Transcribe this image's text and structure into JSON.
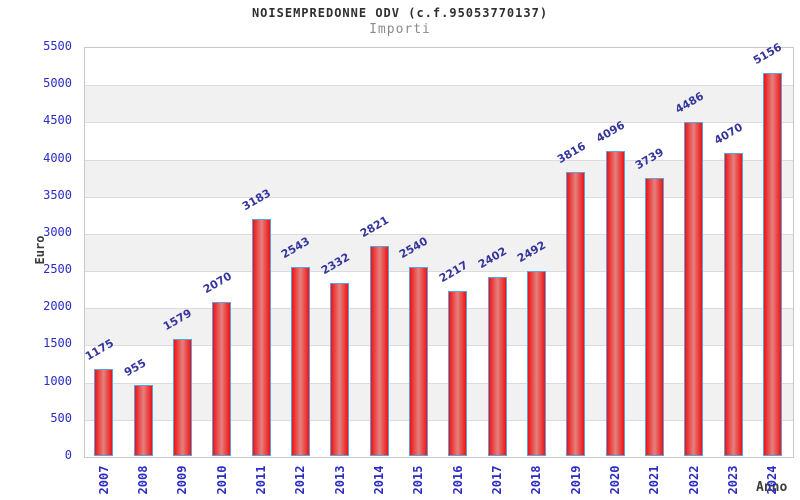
{
  "chart_data": {
    "type": "bar",
    "title": "NOISEMPREDONNE ODV (c.f.95053770137)",
    "subtitle": "Importi",
    "xlabel": "Anno",
    "ylabel": "Euro",
    "categories": [
      "2007",
      "2008",
      "2009",
      "2010",
      "2011",
      "2012",
      "2013",
      "2014",
      "2015",
      "2016",
      "2017",
      "2018",
      "2019",
      "2020",
      "2021",
      "2022",
      "2023",
      "2024"
    ],
    "values": [
      1175,
      955,
      1579,
      2070,
      3183,
      2543,
      2332,
      2821,
      2540,
      2217,
      2402,
      2492,
      3816,
      4096,
      3739,
      4486,
      4070,
      5156
    ],
    "yticks": [
      "0",
      "500",
      "1000",
      "1500",
      "2000",
      "2500",
      "3000",
      "3500",
      "4000",
      "4500",
      "5000",
      "5500"
    ],
    "ylim": [
      0,
      5500
    ],
    "ytick_step": 500,
    "grid": "horizontal gridlines with alternating gray/white bands every 500",
    "legend": null,
    "bar_value_labels_rotation_deg": -30,
    "x_tick_rotation_deg": -90
  },
  "colors": {
    "title": "#2f2f2f",
    "subtitle": "#8c8c8c",
    "tick_label": "#2c2cc4",
    "value_label": "#35359d",
    "axis_title": "#3c3c3c",
    "band_gray": "#f1f1f1",
    "gridline": "#dcdcdc",
    "plot_border": "#c9c9c9",
    "bar_fill_edge": "#ee1414",
    "bar_fill_center": "#e4817e",
    "bar_border": "#58a3e0"
  }
}
